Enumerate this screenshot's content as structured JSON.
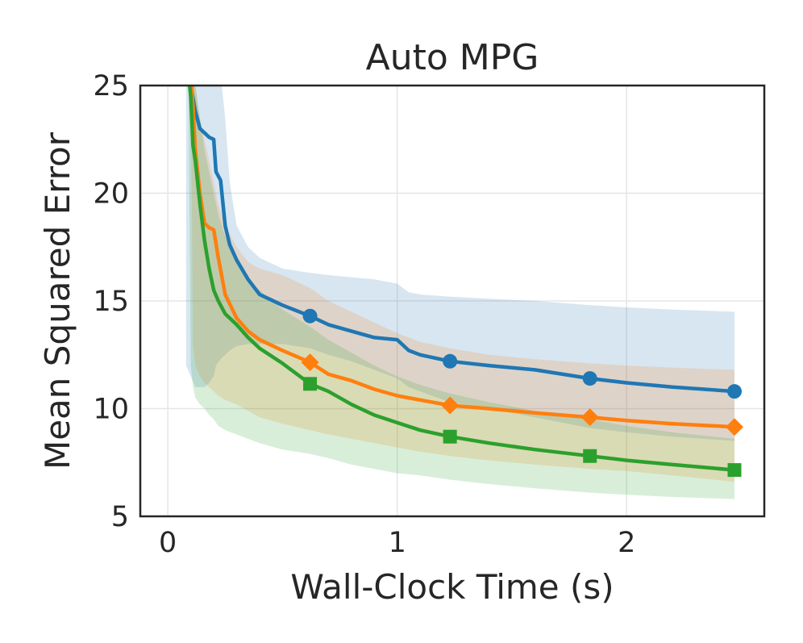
{
  "chart_data": {
    "type": "line",
    "title": "Auto MPG",
    "xlabel": "Wall-Clock Time (s)",
    "ylabel": "Mean Squared Error",
    "xlim": [
      -0.12,
      2.6
    ],
    "ylim": [
      5,
      25
    ],
    "xticks": [
      0,
      1,
      2
    ],
    "yticks": [
      5,
      10,
      15,
      20,
      25
    ],
    "grid": true,
    "legend": "none",
    "series": [
      {
        "color": "#1f77b4",
        "marker": "circle",
        "x": [
          0.08,
          0.1,
          0.12,
          0.14,
          0.16,
          0.18,
          0.2,
          0.21,
          0.23,
          0.25,
          0.27,
          0.3,
          0.35,
          0.4,
          0.5,
          0.62,
          0.7,
          0.8,
          0.9,
          1.0,
          1.05,
          1.1,
          1.23,
          1.4,
          1.6,
          1.84,
          2.0,
          2.2,
          2.47
        ],
        "y": [
          25.5,
          25.0,
          23.8,
          23.0,
          22.8,
          22.6,
          22.5,
          21.0,
          20.6,
          18.5,
          17.6,
          16.9,
          16.0,
          15.3,
          14.8,
          14.3,
          13.9,
          13.6,
          13.3,
          13.2,
          12.7,
          12.5,
          12.2,
          12.0,
          11.8,
          11.4,
          11.2,
          11.0,
          10.8
        ],
        "band_low": [
          12.0,
          11.5,
          11.0,
          11.0,
          11.0,
          11.2,
          11.5,
          12.0,
          12.3,
          12.5,
          12.7,
          12.9,
          13.0,
          13.0,
          13.0,
          12.8,
          12.5,
          12.2,
          11.8,
          11.4,
          11.0,
          10.8,
          10.3,
          10.0,
          9.6,
          9.1,
          8.9,
          8.7,
          8.5
        ],
        "band_high": [
          25.5,
          25.5,
          25.5,
          25.5,
          25.5,
          25.5,
          25.5,
          25.5,
          25.5,
          23.5,
          20.5,
          18.5,
          17.5,
          17.0,
          16.5,
          16.3,
          16.2,
          16.1,
          16.0,
          15.8,
          15.4,
          15.3,
          15.2,
          15.1,
          15.0,
          14.8,
          14.7,
          14.6,
          14.5
        ]
      },
      {
        "color": "#ff7f0e",
        "marker": "diamond",
        "x": [
          0.1,
          0.11,
          0.12,
          0.14,
          0.16,
          0.18,
          0.2,
          0.22,
          0.25,
          0.3,
          0.35,
          0.4,
          0.5,
          0.62,
          0.7,
          0.8,
          0.9,
          1.0,
          1.1,
          1.23,
          1.4,
          1.6,
          1.84,
          2.0,
          2.2,
          2.47
        ],
        "y": [
          25.5,
          24.0,
          22.0,
          20.0,
          18.6,
          18.4,
          18.3,
          17.0,
          15.3,
          14.2,
          13.6,
          13.2,
          12.7,
          12.15,
          11.6,
          11.3,
          10.9,
          10.6,
          10.4,
          10.15,
          10.0,
          9.8,
          9.6,
          9.45,
          9.3,
          9.15
        ],
        "band_low": [
          25.5,
          13.0,
          12.0,
          11.5,
          11.2,
          11.0,
          10.8,
          10.6,
          10.4,
          10.2,
          9.9,
          9.6,
          9.3,
          9.0,
          8.8,
          8.6,
          8.4,
          8.2,
          8.0,
          7.8,
          7.6,
          7.4,
          7.2,
          7.1,
          6.9,
          6.6
        ],
        "band_high": [
          25.5,
          25.5,
          25.0,
          23.5,
          22.5,
          21.5,
          20.5,
          19.5,
          18.5,
          17.5,
          16.8,
          16.5,
          16.2,
          15.6,
          15.0,
          14.5,
          14.0,
          13.5,
          13.1,
          12.8,
          12.5,
          12.3,
          12.1,
          12.0,
          11.9,
          11.8
        ]
      },
      {
        "color": "#2ca02c",
        "marker": "square",
        "x": [
          0.09,
          0.1,
          0.11,
          0.12,
          0.14,
          0.16,
          0.18,
          0.2,
          0.22,
          0.25,
          0.3,
          0.35,
          0.4,
          0.5,
          0.62,
          0.7,
          0.8,
          0.9,
          1.0,
          1.1,
          1.23,
          1.4,
          1.6,
          1.84,
          2.0,
          2.2,
          2.47
        ],
        "y": [
          25.5,
          24.5,
          22.2,
          21.5,
          19.5,
          17.8,
          16.5,
          15.5,
          15.0,
          14.4,
          13.9,
          13.3,
          12.8,
          12.1,
          11.15,
          10.8,
          10.2,
          9.7,
          9.35,
          9.0,
          8.7,
          8.4,
          8.1,
          7.8,
          7.6,
          7.4,
          7.15
        ],
        "band_low": [
          25.5,
          12.0,
          11.0,
          10.5,
          10.2,
          10.0,
          9.7,
          9.5,
          9.2,
          9.0,
          8.8,
          8.6,
          8.4,
          8.1,
          7.9,
          7.7,
          7.4,
          7.2,
          7.0,
          6.9,
          6.7,
          6.5,
          6.3,
          6.1,
          6.0,
          5.9,
          5.8
        ],
        "band_high": [
          25.5,
          25.5,
          25.5,
          25.0,
          23.5,
          22.0,
          21.0,
          20.0,
          19.0,
          18.0,
          16.8,
          16.0,
          15.5,
          14.6,
          13.8,
          13.2,
          12.6,
          12.0,
          11.5,
          11.1,
          10.7,
          10.3,
          9.9,
          9.5,
          9.2,
          8.9,
          8.6
        ]
      }
    ],
    "markers_x": [
      0.62,
      1.23,
      1.84,
      2.47
    ]
  }
}
